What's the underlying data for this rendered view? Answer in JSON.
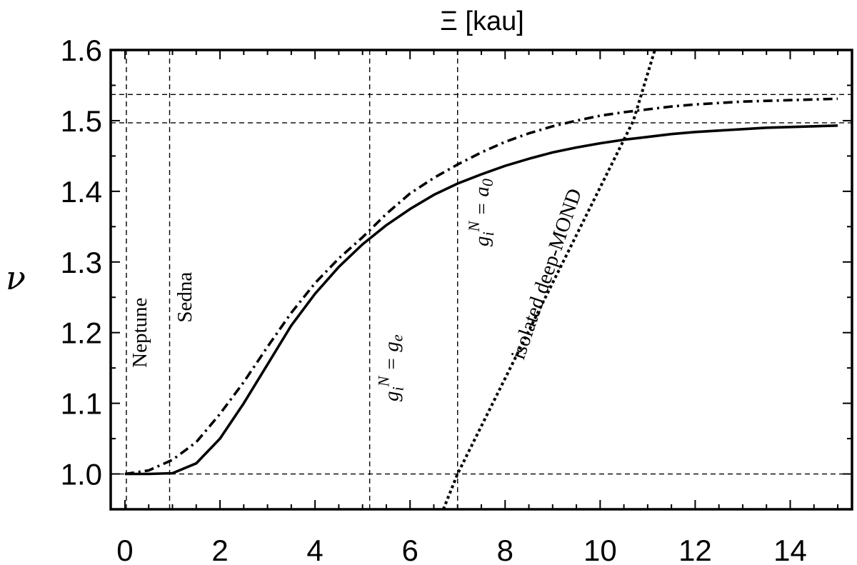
{
  "chart_data": {
    "type": "line",
    "title": "Ξ [kau]",
    "xlabel": "",
    "ylabel": "ν",
    "xlim": [
      -0.3,
      15.3
    ],
    "ylim": [
      0.95,
      1.6
    ],
    "x_ticks": [
      "0",
      "2",
      "4",
      "6",
      "8",
      "10",
      "12",
      "14"
    ],
    "y_ticks": [
      "1.0",
      "1.1",
      "1.2",
      "1.3",
      "1.4",
      "1.5",
      "1.6"
    ],
    "grid": false,
    "reference_lines": {
      "vertical": [
        0.03,
        0.94,
        5.15,
        7.0
      ],
      "horizontal": [
        1.0,
        1.497,
        1.537
      ]
    },
    "series": [
      {
        "style": "solid",
        "x": [
          0,
          0.5,
          1,
          1.5,
          2,
          2.5,
          3,
          3.5,
          4,
          4.5,
          5,
          5.5,
          6,
          6.5,
          7,
          7.5,
          8,
          8.5,
          9,
          9.5,
          10,
          10.5,
          11,
          11.5,
          12,
          12.5,
          13,
          13.5,
          14,
          14.5,
          15
        ],
        "values": [
          1.0,
          1.0,
          1.001,
          1.015,
          1.05,
          1.1,
          1.155,
          1.21,
          1.255,
          1.293,
          1.325,
          1.352,
          1.375,
          1.395,
          1.411,
          1.424,
          1.436,
          1.446,
          1.455,
          1.462,
          1.468,
          1.473,
          1.477,
          1.481,
          1.484,
          1.486,
          1.488,
          1.49,
          1.491,
          1.492,
          1.493
        ]
      },
      {
        "style": "dot-dash",
        "x": [
          0,
          0.5,
          1,
          1.5,
          2,
          2.5,
          3,
          3.5,
          4,
          4.5,
          5,
          5.5,
          6,
          6.5,
          7,
          7.5,
          8,
          8.5,
          9,
          9.5,
          10,
          10.5,
          11,
          11.5,
          12,
          12.5,
          13,
          13.5,
          14,
          14.5,
          15
        ],
        "values": [
          1.0,
          1.005,
          1.02,
          1.045,
          1.085,
          1.13,
          1.18,
          1.228,
          1.27,
          1.305,
          1.335,
          1.368,
          1.397,
          1.419,
          1.438,
          1.455,
          1.47,
          1.482,
          1.492,
          1.5,
          1.507,
          1.512,
          1.516,
          1.52,
          1.523,
          1.525,
          1.527,
          1.528,
          1.529,
          1.53,
          1.531
        ]
      },
      {
        "style": "dotted",
        "x": [
          6.7,
          7.0,
          10.7,
          11.15
        ],
        "values": [
          0.95,
          1.0,
          1.5,
          1.6
        ]
      }
    ],
    "annotations": [
      {
        "text": "Neptune",
        "x": 0.45,
        "y": 1.2
      },
      {
        "text": "Sedna",
        "x": 1.4,
        "y": 1.25
      },
      {
        "base": "g",
        "sub": "i",
        "sup": "N",
        "rest": " = ",
        "base2": "g",
        "sub2": "e",
        "x": 5.75,
        "y": 1.15
      },
      {
        "base": "g",
        "sub": "i",
        "sup": "N",
        "rest": " = ",
        "base2": "a",
        "sub2": "0",
        "x": 7.65,
        "y": 1.37
      },
      {
        "text": "isolated deep-MOND",
        "x": 9.0,
        "y": 1.28
      }
    ]
  }
}
